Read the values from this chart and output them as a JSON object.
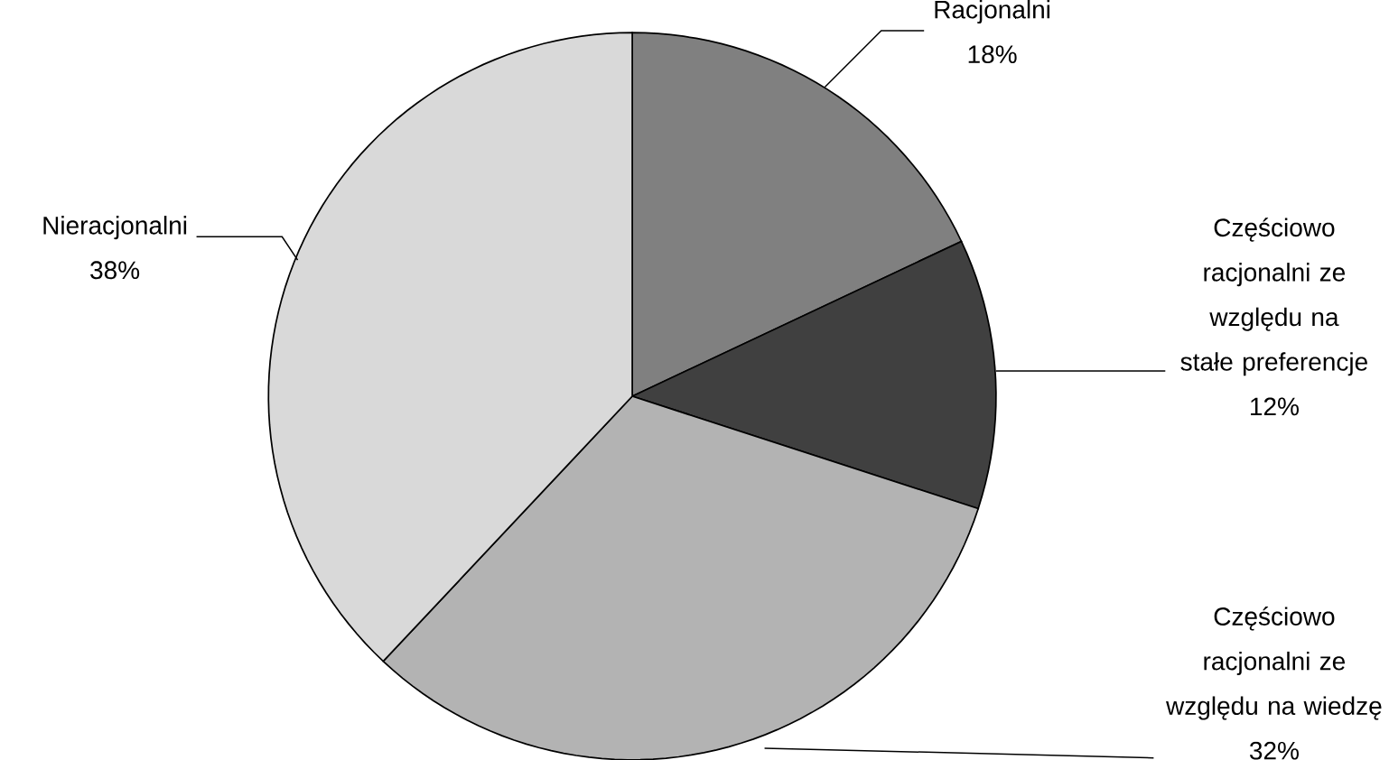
{
  "chart_data": {
    "type": "pie",
    "categories": [
      "Racjonalni",
      "Częściowo racjonalni ze względu na stałe preferencje",
      "Częściowo racjonalni ze względu na wiedzę",
      "Nieracjonalni"
    ],
    "values": [
      18,
      12,
      32,
      38
    ],
    "value_labels": [
      "18%",
      "12%",
      "32%",
      "38%"
    ],
    "colors": [
      "#808080",
      "#404040",
      "#b3b3b3",
      "#d9d9d9"
    ]
  }
}
